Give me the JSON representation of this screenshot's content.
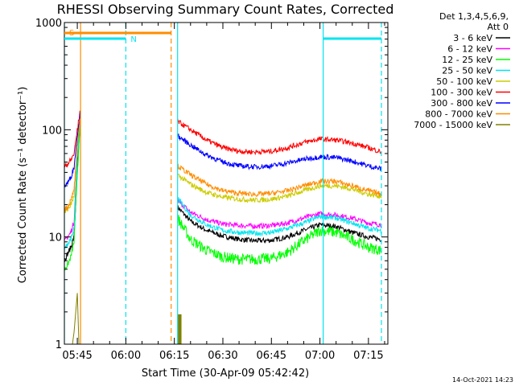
{
  "chart_data": {
    "type": "line",
    "title": "RHESSI Observing Summary Count Rates, Corrected",
    "xlabel": "Start Time (30-Apr-09 05:42:42)",
    "ylabel": "Corrected Count Rate (s⁻¹ detector⁻¹)",
    "y_scale": "log",
    "ylim": [
      1,
      1000
    ],
    "xlim": [
      "05:41",
      "07:21"
    ],
    "x_ticks": [
      "05:45",
      "06:00",
      "06:15",
      "06:30",
      "06:45",
      "07:00",
      "07:15"
    ],
    "y_ticks": [
      "1",
      "10",
      "100",
      "1000"
    ],
    "legend_header": [
      "Det 1,3,4,5,6,9,",
      "Att 0"
    ],
    "legend_position": "top-right",
    "footer_date": "14-Oct-2021 14:23",
    "flags": [
      {
        "label": "S",
        "color": "#ff8c00",
        "from": "05:41",
        "to": "06:14"
      },
      {
        "label": "N",
        "color": "#00e5ee",
        "from": "05:41",
        "to": "06:00",
        "second_from": "07:01",
        "second_to": "07:19"
      }
    ],
    "vlines": [
      {
        "x": "05:46",
        "color": "#ff8c00",
        "style": "solid"
      },
      {
        "x": "06:14",
        "color": "#ff8c00",
        "style": "dashed"
      },
      {
        "x": "06:16",
        "color": "#00e5ee",
        "style": "solid"
      },
      {
        "x": "06:00",
        "color": "#00e5ee",
        "style": "dashed"
      },
      {
        "x": "07:01",
        "color": "#00e5ee",
        "style": "solid"
      },
      {
        "x": "07:19",
        "color": "#00e5ee",
        "style": "dashed"
      },
      {
        "x": "05:41",
        "color": "#00e5ee",
        "style": "solid"
      }
    ],
    "x": [
      "06:16",
      "06:20",
      "06:25",
      "06:30",
      "06:35",
      "06:40",
      "06:45",
      "06:50",
      "06:55",
      "07:00",
      "07:05",
      "07:10",
      "07:15",
      "07:19"
    ],
    "series": [
      {
        "name": "3 - 6 keV",
        "color": "#000000",
        "values": [
          19,
          14,
          11.5,
          10.2,
          9.5,
          9.2,
          9.3,
          10,
          11.5,
          13,
          12.5,
          11,
          10,
          9.5
        ]
      },
      {
        "name": "6 - 12 keV",
        "color": "#ff00ff",
        "values": [
          22,
          17,
          14.5,
          13.2,
          12.8,
          12.6,
          12.8,
          13.5,
          15,
          16.5,
          16,
          15,
          13.5,
          13
        ]
      },
      {
        "name": "12 - 25 keV",
        "color": "#00ff00",
        "values": [
          15,
          9.5,
          7.5,
          6.5,
          6.2,
          6.2,
          6.3,
          7.2,
          9.2,
          11.5,
          11,
          9.5,
          8,
          7.5
        ]
      },
      {
        "name": "25 - 50 keV",
        "color": "#00e5ee",
        "values": [
          23,
          16,
          13,
          11.5,
          11,
          10.8,
          11,
          12,
          13.5,
          15.5,
          15,
          13.5,
          12,
          11.5
        ]
      },
      {
        "name": "50 - 100 keV",
        "color": "#cccc00",
        "values": [
          38,
          31,
          26,
          23.5,
          22.5,
          22,
          22.5,
          24,
          27,
          30,
          30,
          28,
          25,
          24
        ]
      },
      {
        "name": "100 - 300 keV",
        "color": "#ff0000",
        "values": [
          120,
          100,
          80,
          68,
          63,
          62,
          63,
          68,
          76,
          82,
          80,
          75,
          68,
          62
        ]
      },
      {
        "name": "300 - 800 keV",
        "color": "#0000ff",
        "values": [
          88,
          72,
          58,
          50,
          46,
          45,
          46,
          49,
          53,
          56,
          55,
          51,
          46,
          43
        ]
      },
      {
        "name": "800 - 7000 keV",
        "color": "#ff8c00",
        "values": [
          46,
          38,
          31,
          27,
          25.5,
          25,
          25.5,
          27,
          30,
          33,
          33,
          30,
          27,
          25
        ]
      },
      {
        "name": "7000 - 15000 keV",
        "color": "#808000",
        "values": [
          1.9,
          1,
          1,
          1,
          1,
          1,
          1,
          1,
          1,
          1,
          1,
          1,
          1,
          1
        ]
      }
    ],
    "early_segment_x": [
      "05:41",
      "05:42",
      "05:43",
      "05:44",
      "05:45",
      "05:46"
    ],
    "early_segment": {
      "3 - 6 keV": [
        6,
        7,
        8,
        10,
        40,
        130
      ],
      "6 - 12 keV": [
        9,
        10,
        11,
        14,
        55,
        140
      ],
      "12 - 25 keV": [
        5,
        5.5,
        6.5,
        9,
        40,
        120
      ],
      "25 - 50 keV": [
        8,
        8.5,
        9.5,
        12,
        55,
        150
      ],
      "50 - 100 keV": [
        17,
        18,
        20,
        24,
        70,
        150
      ],
      "100 - 300 keV": [
        45,
        48,
        52,
        60,
        100,
        160
      ],
      "300 - 800 keV": [
        30,
        32,
        36,
        45,
        90,
        150
      ],
      "800 - 7000 keV": [
        18,
        19,
        22,
        28,
        70,
        140
      ]
    }
  }
}
